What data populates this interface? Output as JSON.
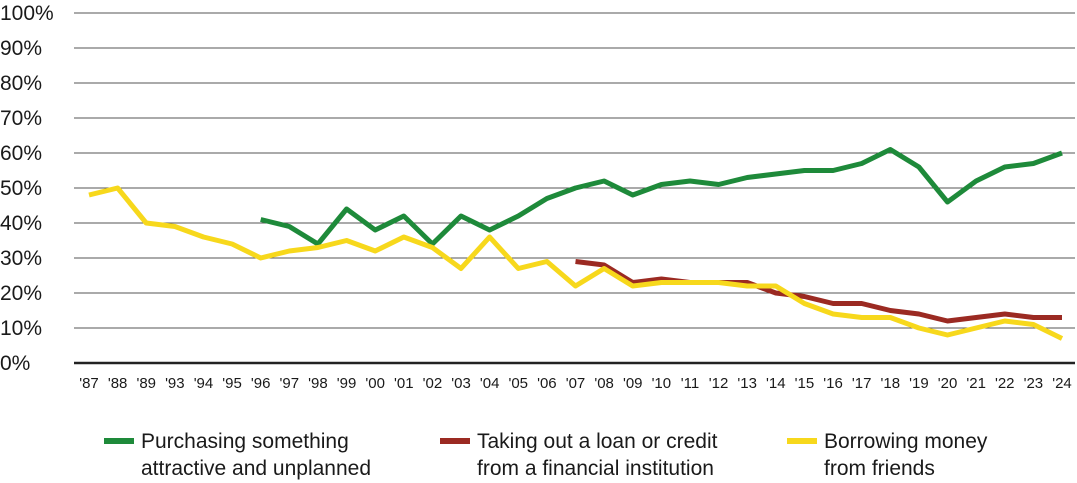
{
  "chart_data": {
    "type": "line",
    "title": "",
    "xlabel": "",
    "ylabel": "",
    "ylim": [
      0,
      100
    ],
    "grid": "horizontal",
    "legend_position": "bottom",
    "y_ticks": [
      "0%",
      "10%",
      "20%",
      "30%",
      "40%",
      "50%",
      "60%",
      "70%",
      "80%",
      "90%",
      "100%"
    ],
    "categories": [
      "'87",
      "'88",
      "'89",
      "'93",
      "'94",
      "'95",
      "'96",
      "'97",
      "'98",
      "'99",
      "'00",
      "'01",
      "'02",
      "'03",
      "'04",
      "'05",
      "'06",
      "'07",
      "'08",
      "'09",
      "'10",
      "'11",
      "'12",
      "'13",
      "'14",
      "'15",
      "'16",
      "'17",
      "'18",
      "'19",
      "'20",
      "'21",
      "'22",
      "'23",
      "'24"
    ],
    "series": [
      {
        "name_lines": [
          "Purchasing something",
          "attractive and unplanned"
        ],
        "color": "#1e8a3a",
        "values": [
          null,
          null,
          null,
          null,
          null,
          null,
          41,
          39,
          34,
          44,
          38,
          42,
          34,
          42,
          38,
          42,
          47,
          50,
          52,
          48,
          51,
          52,
          51,
          53,
          54,
          55,
          55,
          57,
          61,
          56,
          46,
          52,
          56,
          57,
          60
        ]
      },
      {
        "name_lines": [
          "Taking out a loan or credit",
          "from a financial institution"
        ],
        "color": "#9b2a22",
        "values": [
          null,
          null,
          null,
          null,
          null,
          null,
          null,
          null,
          null,
          null,
          null,
          null,
          null,
          null,
          null,
          null,
          null,
          29,
          28,
          23,
          24,
          23,
          23,
          23,
          20,
          19,
          17,
          17,
          15,
          14,
          12,
          13,
          14,
          13,
          13
        ]
      },
      {
        "name_lines": [
          "Borrowing money",
          "from friends"
        ],
        "color": "#f7d81c",
        "values": [
          48,
          50,
          40,
          39,
          36,
          34,
          30,
          32,
          33,
          35,
          32,
          36,
          33,
          27,
          36,
          27,
          29,
          22,
          27,
          22,
          23,
          23,
          23,
          22,
          22,
          17,
          14,
          13,
          13,
          10,
          8,
          10,
          12,
          11,
          7
        ]
      }
    ]
  }
}
